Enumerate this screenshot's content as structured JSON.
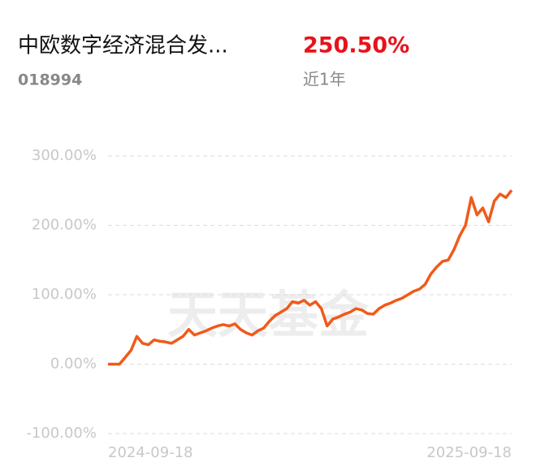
{
  "header": {
    "name": "中欧数字经济混合发...",
    "code": "018994",
    "return": "250.50%",
    "period": "近1年",
    "watermark": "天天基金"
  },
  "chart_data": {
    "type": "line",
    "categories": [
      "2024-09-18",
      null,
      null,
      null,
      null,
      null,
      null,
      null,
      null,
      null,
      null,
      null,
      null,
      null,
      null,
      null,
      null,
      null,
      null,
      null,
      null,
      null,
      null,
      null,
      null,
      null,
      null,
      null,
      null,
      null,
      null,
      null,
      null,
      null,
      null,
      null,
      null,
      null,
      null,
      null,
      null,
      null,
      null,
      null,
      null,
      null,
      null,
      null,
      null,
      null,
      null,
      null,
      null,
      null,
      null,
      null,
      null,
      null,
      null,
      null,
      null,
      null,
      null,
      null,
      null,
      null,
      null,
      null,
      null,
      null,
      "2025-09-18"
    ],
    "series": [
      {
        "color": "#f05a1a",
        "values": [
          0,
          0,
          0,
          10,
          20,
          40,
          30,
          28,
          35,
          33,
          32,
          30,
          35,
          40,
          50,
          42,
          45,
          48,
          52,
          55,
          57,
          55,
          58,
          50,
          45,
          42,
          48,
          52,
          62,
          70,
          75,
          80,
          90,
          88,
          92,
          85,
          90,
          80,
          55,
          65,
          68,
          72,
          75,
          80,
          78,
          73,
          72,
          80,
          85,
          88,
          92,
          95,
          100,
          105,
          108,
          115,
          130,
          140,
          148,
          150,
          165,
          185,
          200,
          240,
          215,
          225,
          205,
          235,
          245,
          240,
          250.5
        ]
      }
    ],
    "ylim": [
      -100,
      300
    ],
    "yticks": [
      {
        "value": -100,
        "label": "-100.00%"
      },
      {
        "value": 0,
        "label": "0.00%"
      },
      {
        "value": 100,
        "label": "100.00%"
      },
      {
        "value": 200,
        "label": "200.00%"
      },
      {
        "value": 300,
        "label": "300.00%"
      }
    ],
    "grid": true
  }
}
